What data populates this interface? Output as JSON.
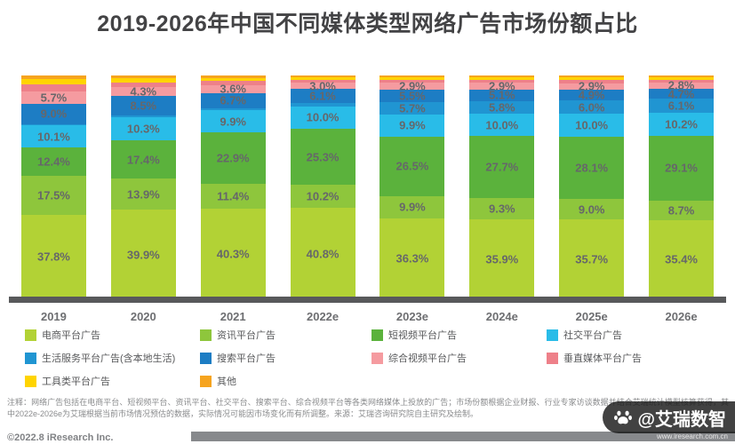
{
  "title": "2019-2026年中国不同媒体类型网络广告市场份额占比",
  "chart_data": {
    "type": "bar",
    "subtype": "stacked-percentage",
    "title": "2019-2026年中国不同媒体类型网络广告市场份额占比",
    "categories": [
      "2019",
      "2020",
      "2021",
      "2022e",
      "2023e",
      "2024e",
      "2025e",
      "2026e"
    ],
    "unit": "%",
    "ylim": [
      0,
      100
    ],
    "legend_position": "bottom",
    "grid": false,
    "series": [
      {
        "key": "ecommerce",
        "name": "电商平台广告",
        "color": "#b2d235",
        "values": [
          37.8,
          39.9,
          40.3,
          40.8,
          36.3,
          35.9,
          35.7,
          35.4
        ],
        "labels": [
          "37.8%",
          "39.9%",
          "40.3%",
          "40.8%",
          "36.3%",
          "35.9%",
          "35.7%",
          "35.4%"
        ]
      },
      {
        "key": "news-feed",
        "name": "资讯平台广告",
        "color": "#8ec63c",
        "values": [
          17.5,
          13.9,
          11.4,
          10.2,
          9.9,
          9.3,
          9.0,
          8.7
        ],
        "labels": [
          "17.5%",
          "13.9%",
          "11.4%",
          "10.2%",
          "9.9%",
          "9.3%",
          "9.0%",
          "8.7%"
        ]
      },
      {
        "key": "short-video",
        "name": "短视频平台广告",
        "color": "#5bb23c",
        "values": [
          12.4,
          17.4,
          22.9,
          25.3,
          26.5,
          27.7,
          28.1,
          29.1
        ],
        "labels": [
          "12.4%",
          "17.4%",
          "22.9%",
          "25.3%",
          "26.5%",
          "27.7%",
          "28.1%",
          "29.1%"
        ]
      },
      {
        "key": "social",
        "name": "社交平台广告",
        "color": "#29bce8",
        "values": [
          10.1,
          10.3,
          9.9,
          10.0,
          9.9,
          10.0,
          10.0,
          10.2
        ],
        "labels": [
          "10.1%",
          "10.3%",
          "9.9%",
          "10.0%",
          "9.9%",
          "10.0%",
          "10.0%",
          "10.2%"
        ]
      },
      {
        "key": "local-life",
        "name": "生活服务平台广告(含本地生活)",
        "color": "#2095d2",
        "values": [
          0.5,
          0.7,
          1.0,
          1.5,
          5.7,
          5.8,
          6.0,
          6.1
        ],
        "labels": [
          null,
          null,
          null,
          null,
          "5.7%",
          "5.8%",
          "6.0%",
          "6.1%"
        ]
      },
      {
        "key": "search",
        "name": "搜索平台广告",
        "color": "#1d7dc4",
        "values": [
          9.0,
          8.5,
          6.7,
          6.1,
          5.5,
          5.1,
          4.9,
          4.7
        ],
        "labels": [
          "9.0%",
          "8.5%",
          "6.7%",
          "6.1%",
          "5.5%",
          "5.1%",
          "4.9%",
          "4.7%"
        ]
      },
      {
        "key": "online-video",
        "name": "综合视频平台广告",
        "color": "#f59ba0",
        "values": [
          5.7,
          4.3,
          3.6,
          3.0,
          2.9,
          2.9,
          2.9,
          2.8
        ],
        "labels": [
          "5.7%",
          "4.3%",
          "3.6%",
          "3.0%",
          "2.9%",
          "2.9%",
          "2.9%",
          "2.8%"
        ]
      },
      {
        "key": "vertical",
        "name": "垂直媒体平台广告",
        "color": "#ee8089",
        "values": [
          3.0,
          2.0,
          1.7,
          1.3,
          1.4,
          1.3,
          1.4,
          1.2
        ],
        "labels": [
          null,
          null,
          null,
          null,
          null,
          null,
          null,
          null
        ]
      },
      {
        "key": "tool",
        "name": "工具类平台广告",
        "color": "#ffd400",
        "values": [
          2.5,
          1.8,
          1.5,
          1.0,
          1.1,
          1.2,
          1.2,
          1.0
        ],
        "labels": [
          null,
          null,
          null,
          null,
          null,
          null,
          null,
          null
        ]
      },
      {
        "key": "other",
        "name": "其他",
        "color": "#f6a41f",
        "values": [
          1.5,
          1.2,
          1.0,
          0.8,
          0.8,
          0.8,
          0.8,
          0.8
        ],
        "labels": [
          null,
          null,
          null,
          null,
          null,
          null,
          null,
          null
        ]
      }
    ]
  },
  "notes": "注释：网络广告包括在电商平台、短视频平台、资讯平台、社交平台、搜索平台、综合视频平台等各类网络媒体上投放的广告；市场份额根据企业财报、行业专家访谈数据并结合艾瑞统计模型核算获得，其中2022e-2026e为艾瑞根据当前市场情况预估的数据，实际情况可能因市场变化而有所调整。来源：艾瑞咨询研究院自主研究及绘制。",
  "footer": {
    "copyright": "©2022.8 iResearch Inc.",
    "website": "www.iresearch.com.cn"
  },
  "watermark": {
    "handle": "@艾瑞数智",
    "icon": "paw-icon"
  }
}
